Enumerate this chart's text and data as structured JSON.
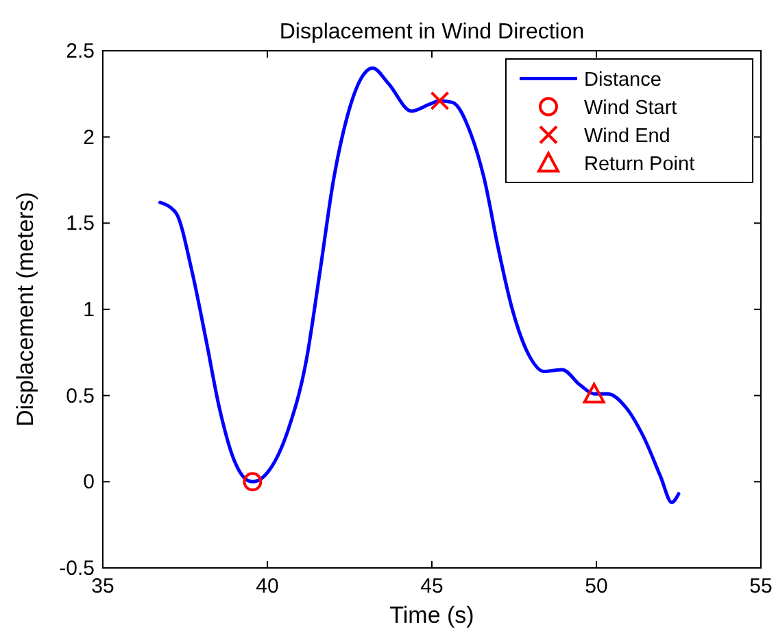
{
  "chart_data": {
    "type": "line",
    "title": "Displacement in Wind Direction",
    "xlabel": "Time (s)",
    "ylabel": "Displacement (meters)",
    "xlim": [
      35,
      55
    ],
    "xticks": [
      35,
      40,
      45,
      50,
      55
    ],
    "ylim": [
      -0.5,
      2.5
    ],
    "yticks": [
      -0.5,
      0,
      0.5,
      1,
      1.5,
      2,
      2.5
    ],
    "grid": false,
    "legend": "top right",
    "series": [
      {
        "name": "Distance",
        "color": "#0000ff",
        "marker": "none",
        "x": [
          36.74,
          37.22,
          37.71,
          38.13,
          38.54,
          38.96,
          39.38,
          39.55,
          40.07,
          40.63,
          41.18,
          41.6,
          42.01,
          42.43,
          42.85,
          43.2,
          43.68,
          44.38,
          44.93,
          45.24,
          45.63,
          46.18,
          46.6,
          47.01,
          47.43,
          47.99,
          48.4,
          48.96,
          49.51,
          49.93,
          50.35,
          50.9,
          51.46,
          51.95,
          52.29,
          52.5
        ],
        "values": [
          1.62,
          1.56,
          1.22,
          0.83,
          0.43,
          0.14,
          0.01,
          0.0,
          0.07,
          0.3,
          0.7,
          1.22,
          1.75,
          2.12,
          2.34,
          2.4,
          2.31,
          2.15,
          2.19,
          2.21,
          2.2,
          2.02,
          1.75,
          1.36,
          1.01,
          0.72,
          0.64,
          0.65,
          0.56,
          0.51,
          0.51,
          0.43,
          0.25,
          0.03,
          -0.12,
          -0.07
        ]
      },
      {
        "name": "Wind Start",
        "type": "scatter",
        "color": "#ff0000",
        "marker": "circle",
        "x": [
          39.55
        ],
        "values": [
          0.0
        ]
      },
      {
        "name": "Wind End",
        "type": "scatter",
        "color": "#ff0000",
        "marker": "cross",
        "x": [
          45.24
        ],
        "values": [
          2.21
        ]
      },
      {
        "name": "Return Point",
        "type": "scatter",
        "color": "#ff0000",
        "marker": "triangle",
        "x": [
          49.93
        ],
        "values": [
          0.51
        ]
      }
    ]
  }
}
